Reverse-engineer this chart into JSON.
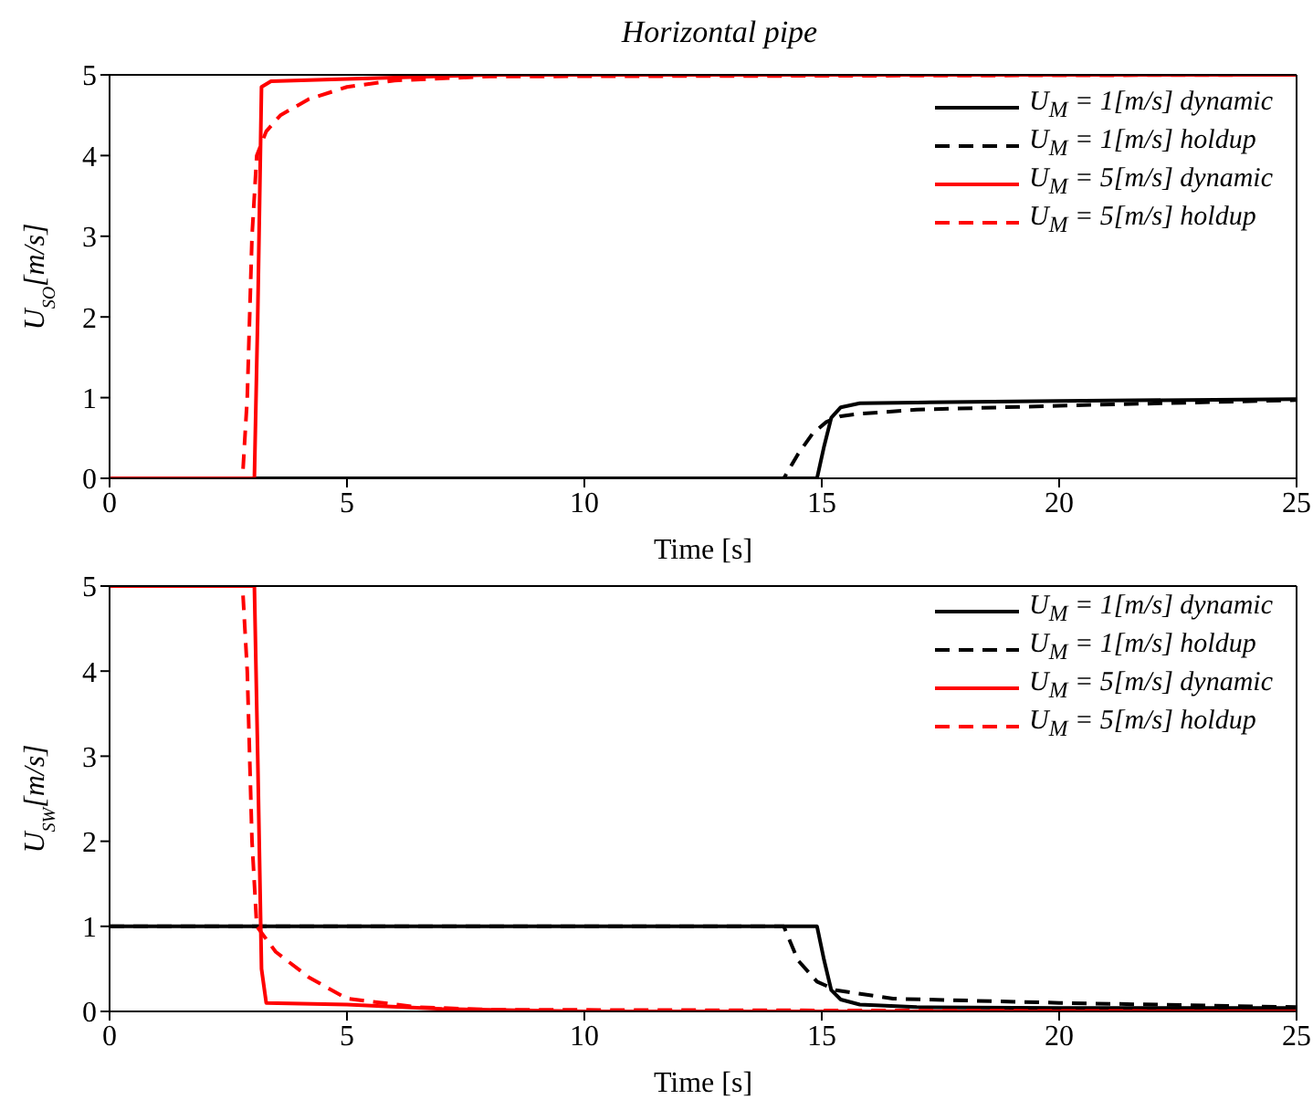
{
  "chart_data": [
    {
      "type": "line",
      "title": "Horizontal pipe",
      "xlabel": "Time [s]",
      "ylabel": "U$_{SO}$[m/s]",
      "xlim": [
        0,
        25
      ],
      "xticks": [
        0,
        5,
        10,
        15,
        20,
        25
      ],
      "ylim": [
        0,
        5
      ],
      "yticks": [
        0,
        1,
        2,
        3,
        4,
        5
      ],
      "legend": "top right",
      "marker": "none",
      "series": [
        {
          "name": "U$_{M}$ = 1[m/s] dynamic",
          "color": "#000000",
          "line_style": "solid",
          "x": [
            0,
            14.9,
            15.05,
            15.2,
            15.4,
            15.8,
            17,
            20,
            25
          ],
          "values": [
            0,
            0,
            0.4,
            0.75,
            0.88,
            0.93,
            0.94,
            0.96,
            0.98
          ]
        },
        {
          "name": "U$_{M}$ = 1[m/s] holdup",
          "color": "#000000",
          "line_style": "dashed",
          "x": [
            0,
            14.2,
            14.5,
            14.8,
            15.1,
            15.4,
            15.8,
            17,
            20,
            25
          ],
          "values": [
            0,
            0,
            0.3,
            0.55,
            0.7,
            0.77,
            0.8,
            0.85,
            0.9,
            0.97
          ]
        },
        {
          "name": "U$_{M}$ = 5[m/s] dynamic",
          "color": "#ff0000",
          "line_style": "solid",
          "x": [
            0,
            3.05,
            3.12,
            3.2,
            3.4,
            5,
            8,
            25
          ],
          "values": [
            0,
            0,
            2,
            4.85,
            4.92,
            4.95,
            5,
            5
          ]
        },
        {
          "name": "U$_{M}$ = 5[m/s] holdup",
          "color": "#ff0000",
          "line_style": "dashed",
          "x": [
            0,
            2.8,
            2.9,
            3.0,
            3.1,
            3.3,
            3.6,
            4.2,
            5,
            6,
            8,
            25
          ],
          "values": [
            0,
            0,
            1,
            3,
            4,
            4.3,
            4.5,
            4.7,
            4.85,
            4.93,
            4.98,
            5
          ]
        }
      ]
    },
    {
      "type": "line",
      "xlabel": "Time [s]",
      "ylabel": "U$_{SW}$[m/s]",
      "xlim": [
        0,
        25
      ],
      "xticks": [
        0,
        5,
        10,
        15,
        20,
        25
      ],
      "ylim": [
        0,
        5
      ],
      "yticks": [
        0,
        1,
        2,
        3,
        4,
        5
      ],
      "legend": "top right",
      "marker": "none",
      "series": [
        {
          "name": "U$_{M}$ = 1[m/s] dynamic",
          "color": "#000000",
          "line_style": "solid",
          "x": [
            0,
            14.9,
            15.05,
            15.2,
            15.4,
            15.8,
            17,
            20,
            25
          ],
          "values": [
            1,
            1,
            0.6,
            0.25,
            0.14,
            0.08,
            0.05,
            0.04,
            0.04
          ]
        },
        {
          "name": "U$_{M}$ = 1[m/s] holdup",
          "color": "#000000",
          "line_style": "dashed",
          "x": [
            0,
            14.2,
            14.5,
            14.9,
            15.3,
            16.5,
            20,
            25
          ],
          "values": [
            1,
            1,
            0.6,
            0.35,
            0.25,
            0.15,
            0.1,
            0.05
          ]
        },
        {
          "name": "U$_{M}$ = 5[m/s] dynamic",
          "color": "#ff0000",
          "line_style": "solid",
          "x": [
            0,
            3.05,
            3.12,
            3.2,
            3.3,
            5,
            7,
            10,
            25
          ],
          "values": [
            5,
            5,
            3,
            0.5,
            0.1,
            0.08,
            0.03,
            0,
            0
          ]
        },
        {
          "name": "U$_{M}$ = 5[m/s] holdup",
          "color": "#ff0000",
          "line_style": "dashed",
          "x": [
            0,
            2.8,
            2.9,
            3.0,
            3.1,
            3.5,
            4.2,
            5,
            6.5,
            8,
            25
          ],
          "values": [
            5,
            5,
            4,
            2,
            1,
            0.7,
            0.4,
            0.15,
            0.05,
            0.02,
            0
          ]
        }
      ]
    }
  ]
}
